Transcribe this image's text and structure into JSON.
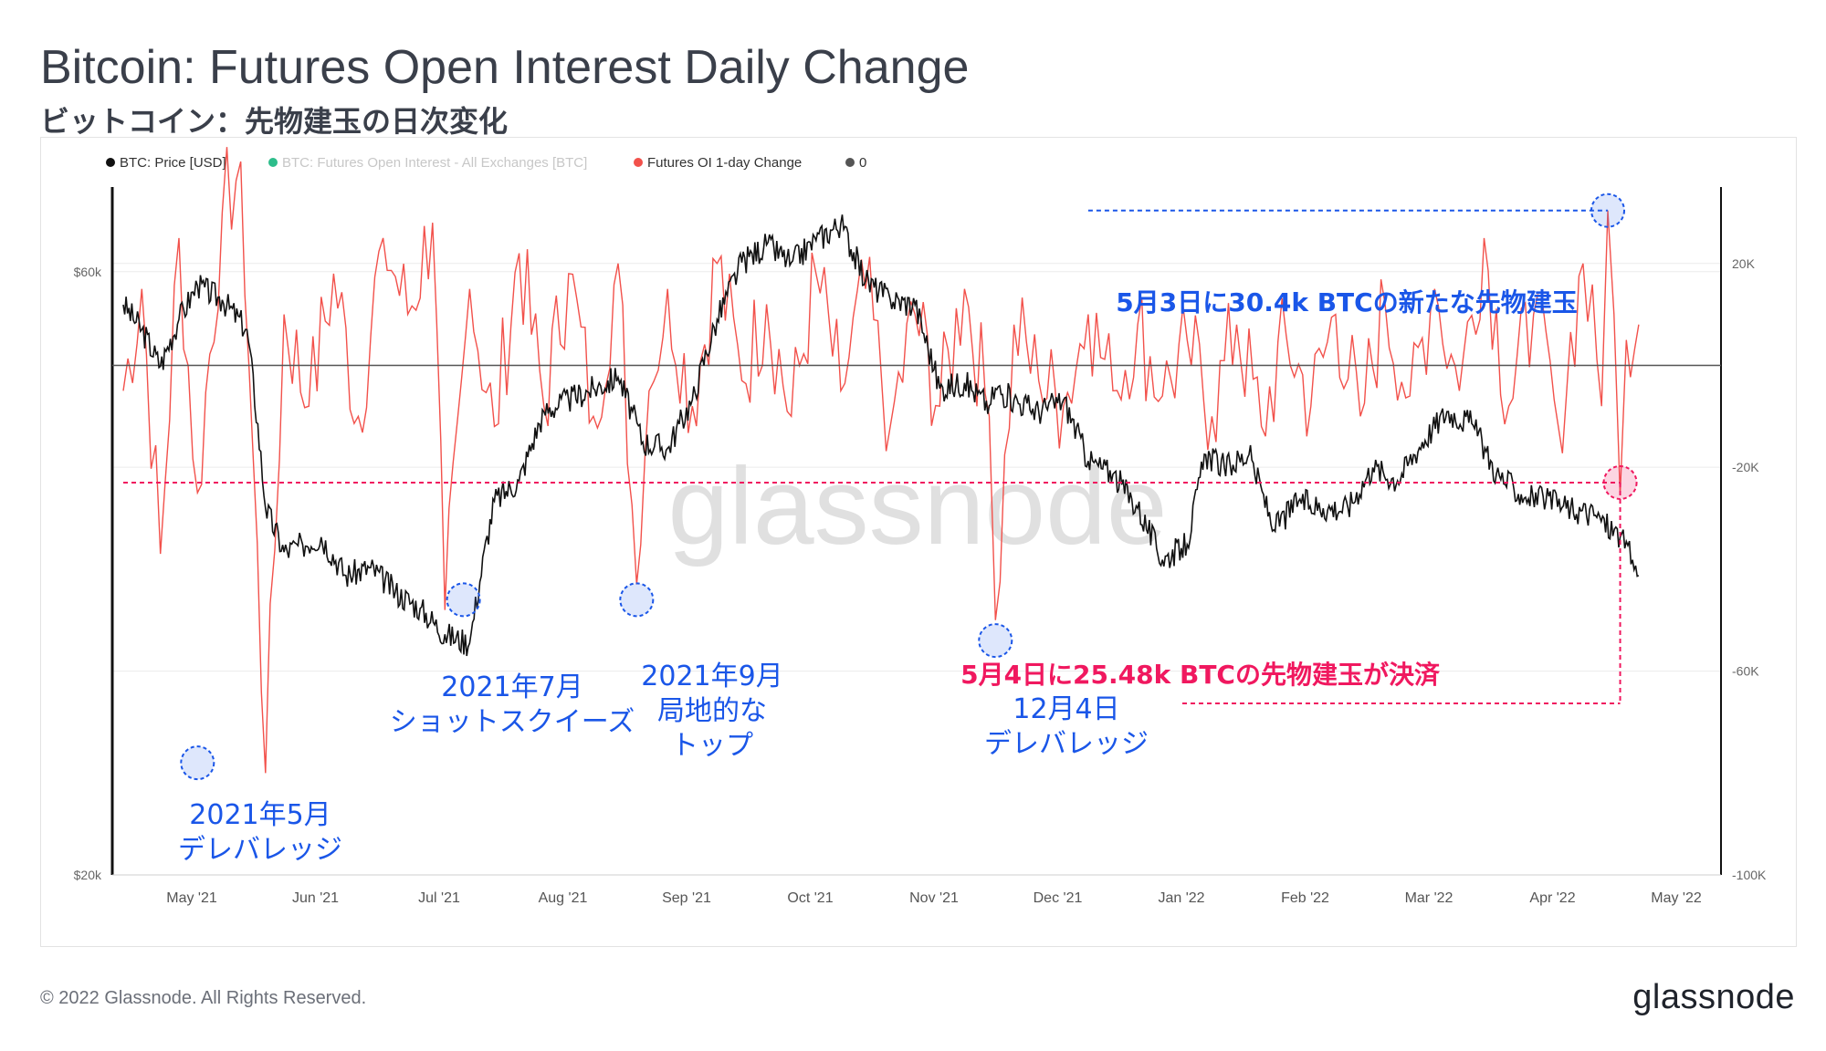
{
  "header": {
    "title": "Bitcoin: Futures Open Interest Daily Change",
    "subtitle": "ビットコイン：先物建玉の日次変化"
  },
  "footer": {
    "copyright": "© 2022 Glassnode. All Rights Reserved.",
    "logo": "glassnode"
  },
  "colors": {
    "price": "#111111",
    "oi_change": "#f2514b",
    "open_interest": "#2dbd8b",
    "zero": "#555555",
    "blue_annotation": "#1a56e8",
    "pink_annotation": "#f0185f"
  },
  "chart_data": {
    "type": "line",
    "title": "Bitcoin: Futures Open Interest Daily Change",
    "watermark": "glassnode",
    "legend": [
      {
        "label": "BTC: Price [USD]",
        "color": "#111111",
        "muted": false
      },
      {
        "label": "BTC: Futures Open Interest - All Exchanges [BTC]",
        "color": "#2dbd8b",
        "muted": true
      },
      {
        "label": "Futures OI 1-day Change",
        "color": "#f2514b",
        "muted": false
      },
      {
        "label": "0",
        "color": "#555555",
        "muted": false
      }
    ],
    "x_ticks": [
      "May '21",
      "Jun '21",
      "Jul '21",
      "Aug '21",
      "Sep '21",
      "Oct '21",
      "Nov '21",
      "Dec '21",
      "Jan '22",
      "Feb '22",
      "Mar '22",
      "Apr '22",
      "May '22"
    ],
    "x_range_months": [
      0,
      12.25
    ],
    "y_left": {
      "scale": "log",
      "range": [
        20000,
        70000
      ],
      "ticks": [
        "$20k",
        "$60k"
      ],
      "tick_values": [
        20000,
        60000
      ]
    },
    "y_right": {
      "range": [
        -100000,
        35000
      ],
      "ticks": [
        "20K",
        "-20K",
        "-60K",
        "-100K"
      ],
      "tick_values": [
        20000,
        -20000,
        -60000,
        -100000
      ]
    },
    "price_series": {
      "name": "BTC: Price [USD]",
      "t_months": [
        0,
        0.15,
        0.3,
        0.45,
        0.6,
        0.8,
        1.0,
        1.15,
        1.3,
        1.45,
        1.6,
        1.8,
        2.0,
        2.2,
        2.4,
        2.6,
        2.8,
        3.0,
        3.2,
        3.4,
        3.6,
        3.8,
        4.0,
        4.2,
        4.4,
        4.6,
        4.8,
        5.0,
        5.2,
        5.4,
        5.6,
        5.8,
        6.0,
        6.2,
        6.4,
        6.6,
        6.8,
        7.0,
        7.05,
        7.2,
        7.4,
        7.6,
        7.8,
        8.0,
        8.2,
        8.4,
        8.6,
        8.75,
        8.9,
        9.1,
        9.3,
        9.5,
        9.7,
        9.9,
        10.1,
        10.3,
        10.5,
        10.7,
        10.9,
        11.1,
        11.3,
        11.5,
        11.7,
        11.9,
        12.1,
        12.2,
        12.25
      ],
      "values": [
        56500,
        54000,
        50500,
        55000,
        58500,
        57000,
        54000,
        39000,
        36000,
        36500,
        37000,
        34500,
        35000,
        33500,
        32500,
        31000,
        30500,
        39500,
        41000,
        46500,
        47500,
        48500,
        49500,
        44000,
        43500,
        47500,
        55000,
        61000,
        63000,
        61000,
        63500,
        65500,
        59000,
        57000,
        56500,
        48500,
        49000,
        47000,
        48500,
        47500,
        46500,
        47500,
        42500,
        41500,
        39000,
        35500,
        36500,
        43000,
        42000,
        43000,
        37500,
        39500,
        39000,
        39000,
        42000,
        41000,
        44000,
        46500,
        45500,
        41500,
        40000,
        39500,
        39000,
        38500,
        37000,
        35500,
        34500
      ]
    },
    "oi_change_series": {
      "name": "Futures OI 1-day Change",
      "unit": "BTC",
      "t_months": [
        0,
        0.15,
        0.3,
        0.45,
        0.6,
        0.8,
        0.95,
        1.05,
        1.15,
        1.3,
        1.5,
        1.7,
        1.9,
        2.1,
        2.3,
        2.5,
        2.6,
        2.8,
        3.0,
        3.2,
        3.4,
        3.6,
        3.8,
        4.0,
        4.15,
        4.25,
        4.4,
        4.6,
        4.8,
        5.0,
        5.2,
        5.4,
        5.6,
        5.8,
        6.0,
        6.2,
        6.4,
        6.6,
        6.8,
        7.0,
        7.05,
        7.2,
        7.4,
        7.6,
        7.8,
        8.0,
        8.2,
        8.4,
        8.6,
        8.8,
        9.0,
        9.2,
        9.4,
        9.6,
        9.8,
        10.0,
        10.2,
        10.4,
        10.6,
        10.8,
        11.0,
        11.2,
        11.4,
        11.6,
        11.8,
        11.95,
        12.0,
        12.05,
        12.1,
        12.15,
        12.25
      ],
      "values": [
        -5000,
        15000,
        -37000,
        25000,
        -25000,
        30000,
        40000,
        -18000,
        -80000,
        10000,
        -8000,
        18000,
        -10000,
        25000,
        10000,
        28000,
        -48000,
        15000,
        -12000,
        22000,
        -8000,
        18000,
        -10000,
        20000,
        -43000,
        -5000,
        15000,
        -8000,
        20000,
        -3000,
        12000,
        -10000,
        18000,
        -5000,
        15000,
        -12000,
        10000,
        -8000,
        15000,
        -10000,
        -50000,
        8000,
        -3000,
        -8000,
        10000,
        -5000,
        8000,
        -6000,
        5000,
        -10000,
        8000,
        -12000,
        6000,
        -8000,
        10000,
        -10000,
        12000,
        -6000,
        15000,
        -5000,
        25000,
        -8000,
        10000,
        -12000,
        20000,
        -8000,
        30400,
        10000,
        -25480,
        5000,
        8000
      ]
    },
    "zero_line": 0,
    "reference_lines": [
      {
        "label": "blue_dashed",
        "value_btc": 30400,
        "from_month": 7.8,
        "to_month": 12.0
      },
      {
        "label": "pink_dashed",
        "value_btc": -23000,
        "from_month": 0,
        "to_month": 12.1
      }
    ],
    "annotations": [
      {
        "text": "5月3日に30.4k BTCの新たな先物建玉",
        "color": "#1a56e8",
        "t_month": 12.0,
        "value_btc": 30400
      },
      {
        "text": "5月4日に25.48k BTCの先物建玉が決済",
        "color": "#f0185f",
        "t_month": 12.1,
        "value_btc": -23000
      },
      {
        "text": "2021年5月\nデレバレッジ",
        "color": "#1a56e8",
        "t_month": 0.6,
        "value_btc": -78000
      },
      {
        "text": "2021年7月\nショットスクイーズ",
        "color": "#1a56e8",
        "t_month": 2.75,
        "value_btc": -46000
      },
      {
        "text": "2021年9月\n局地的な\nトップ",
        "color": "#1a56e8",
        "t_month": 4.15,
        "value_btc": -46000
      },
      {
        "text": "12月4日\nデレバレッジ",
        "color": "#1a56e8",
        "t_month": 7.05,
        "value_btc": -54000
      }
    ]
  }
}
